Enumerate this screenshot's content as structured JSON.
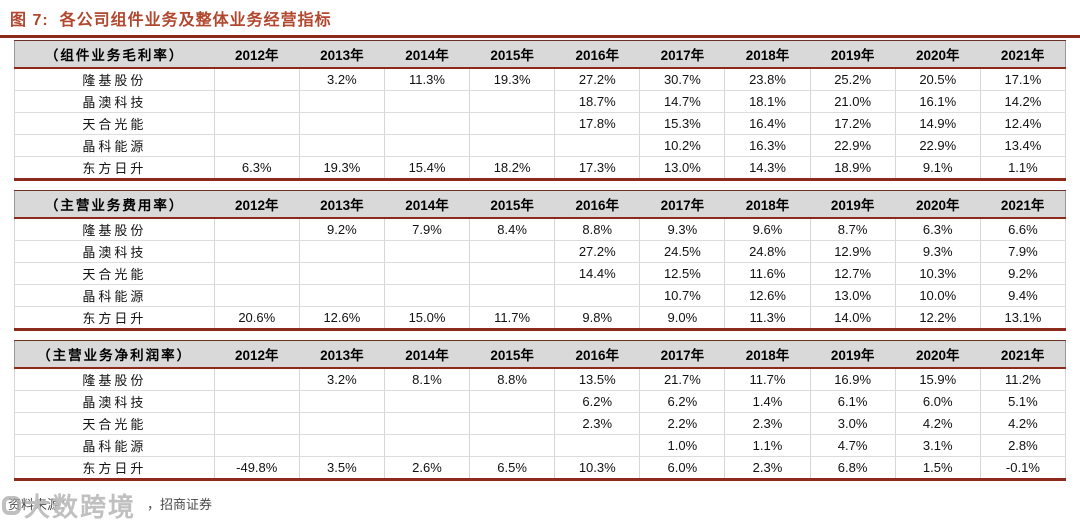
{
  "title": "图 7:  各公司组件业务及整体业务经营指标",
  "years": [
    "2012年",
    "2013年",
    "2014年",
    "2015年",
    "2016年",
    "2017年",
    "2018年",
    "2019年",
    "2020年",
    "2021年"
  ],
  "tables": [
    {
      "label": "（组件业务毛利率）",
      "rows": [
        {
          "name": "隆基股份",
          "values": [
            "",
            "3.2%",
            "11.3%",
            "19.3%",
            "27.2%",
            "30.7%",
            "23.8%",
            "25.2%",
            "20.5%",
            "17.1%"
          ]
        },
        {
          "name": "晶澳科技",
          "values": [
            "",
            "",
            "",
            "",
            "18.7%",
            "14.7%",
            "18.1%",
            "21.0%",
            "16.1%",
            "14.2%"
          ]
        },
        {
          "name": "天合光能",
          "values": [
            "",
            "",
            "",
            "",
            "17.8%",
            "15.3%",
            "16.4%",
            "17.2%",
            "14.9%",
            "12.4%"
          ]
        },
        {
          "name": "晶科能源",
          "values": [
            "",
            "",
            "",
            "",
            "",
            "10.2%",
            "16.3%",
            "22.9%",
            "22.9%",
            "13.4%"
          ]
        },
        {
          "name": "东方日升",
          "values": [
            "6.3%",
            "19.3%",
            "15.4%",
            "18.2%",
            "17.3%",
            "13.0%",
            "14.3%",
            "18.9%",
            "9.1%",
            "1.1%"
          ]
        }
      ]
    },
    {
      "label": "（主营业务费用率）",
      "rows": [
        {
          "name": "隆基股份",
          "values": [
            "",
            "9.2%",
            "7.9%",
            "8.4%",
            "8.8%",
            "9.3%",
            "9.6%",
            "8.7%",
            "6.3%",
            "6.6%"
          ]
        },
        {
          "name": "晶澳科技",
          "values": [
            "",
            "",
            "",
            "",
            "27.2%",
            "24.5%",
            "24.8%",
            "12.9%",
            "9.3%",
            "7.9%"
          ]
        },
        {
          "name": "天合光能",
          "values": [
            "",
            "",
            "",
            "",
            "14.4%",
            "12.5%",
            "11.6%",
            "12.7%",
            "10.3%",
            "9.2%"
          ]
        },
        {
          "name": "晶科能源",
          "values": [
            "",
            "",
            "",
            "",
            "",
            "10.7%",
            "12.6%",
            "13.0%",
            "10.0%",
            "9.4%"
          ]
        },
        {
          "name": "东方日升",
          "values": [
            "20.6%",
            "12.6%",
            "15.0%",
            "11.7%",
            "9.8%",
            "9.0%",
            "11.3%",
            "14.0%",
            "12.2%",
            "13.1%"
          ]
        }
      ]
    },
    {
      "label": "（主营业务净利润率）",
      "rows": [
        {
          "name": "隆基股份",
          "values": [
            "",
            "3.2%",
            "8.1%",
            "8.8%",
            "13.5%",
            "21.7%",
            "11.7%",
            "16.9%",
            "15.9%",
            "11.2%"
          ]
        },
        {
          "name": "晶澳科技",
          "values": [
            "",
            "",
            "",
            "",
            "6.2%",
            "6.2%",
            "1.4%",
            "6.1%",
            "6.0%",
            "5.1%"
          ]
        },
        {
          "name": "天合光能",
          "values": [
            "",
            "",
            "",
            "",
            "2.3%",
            "2.2%",
            "2.3%",
            "3.0%",
            "4.2%",
            "4.2%"
          ]
        },
        {
          "name": "晶科能源",
          "values": [
            "",
            "",
            "",
            "",
            "",
            "1.0%",
            "1.1%",
            "4.7%",
            "3.1%",
            "2.8%"
          ]
        },
        {
          "name": "东方日升",
          "values": [
            "-49.8%",
            "3.5%",
            "2.6%",
            "6.5%",
            "10.3%",
            "6.0%",
            "2.3%",
            "6.8%",
            "1.5%",
            "-0.1%"
          ]
        }
      ]
    }
  ],
  "footer": {
    "source_prefix": "资料来源：",
    "source_suffix": "，招商证券",
    "watermark": "大数跨境"
  },
  "colors": {
    "accent_rule_red": "#8E2A1B",
    "title_red": "#B1472F",
    "header_bg": "#D9D9D9",
    "grid_gray": "#D6D6D6",
    "watermark_gray": "#A8A8A8"
  }
}
